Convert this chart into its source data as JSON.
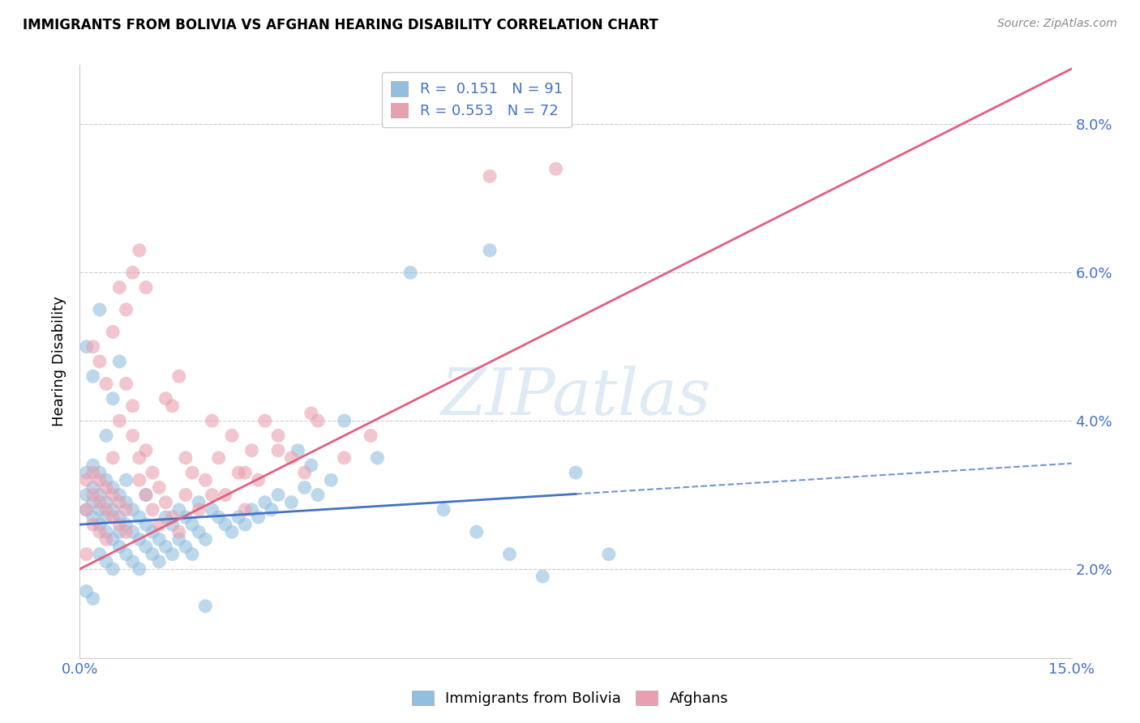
{
  "title": "IMMIGRANTS FROM BOLIVIA VS AFGHAN HEARING DISABILITY CORRELATION CHART",
  "source": "Source: ZipAtlas.com",
  "ylabel": "Hearing Disability",
  "xlim": [
    0.0,
    0.15
  ],
  "ylim": [
    0.008,
    0.088
  ],
  "yticks": [
    0.02,
    0.04,
    0.06,
    0.08
  ],
  "ytick_labels": [
    "2.0%",
    "4.0%",
    "6.0%",
    "8.0%"
  ],
  "xticks": [
    0.0,
    0.03,
    0.06,
    0.09,
    0.12,
    0.15
  ],
  "xtick_labels": [
    "0.0%",
    "",
    "",
    "",
    "",
    "15.0%"
  ],
  "bolivia_R": 0.151,
  "bolivia_N": 91,
  "afghan_R": 0.553,
  "afghan_N": 72,
  "bolivia_color": "#92BFDF",
  "afghan_color": "#E8A0B0",
  "bolivia_line_color": "#4472C4",
  "afghan_line_color": "#E06080",
  "bolivia_line_solid_end": 0.075,
  "bolivia_x": [
    0.001,
    0.001,
    0.001,
    0.002,
    0.002,
    0.002,
    0.002,
    0.003,
    0.003,
    0.003,
    0.003,
    0.003,
    0.004,
    0.004,
    0.004,
    0.004,
    0.004,
    0.005,
    0.005,
    0.005,
    0.005,
    0.006,
    0.006,
    0.006,
    0.006,
    0.007,
    0.007,
    0.007,
    0.007,
    0.008,
    0.008,
    0.008,
    0.009,
    0.009,
    0.009,
    0.01,
    0.01,
    0.01,
    0.011,
    0.011,
    0.012,
    0.012,
    0.013,
    0.013,
    0.014,
    0.014,
    0.015,
    0.015,
    0.016,
    0.016,
    0.017,
    0.017,
    0.018,
    0.018,
    0.019,
    0.02,
    0.021,
    0.022,
    0.023,
    0.024,
    0.025,
    0.026,
    0.027,
    0.028,
    0.029,
    0.03,
    0.032,
    0.034,
    0.036,
    0.038,
    0.04,
    0.045,
    0.05,
    0.055,
    0.06,
    0.065,
    0.07,
    0.001,
    0.002,
    0.003,
    0.004,
    0.005,
    0.006,
    0.001,
    0.002,
    0.075,
    0.08,
    0.033,
    0.019,
    0.062,
    0.035
  ],
  "bolivia_y": [
    0.03,
    0.028,
    0.033,
    0.027,
    0.031,
    0.034,
    0.029,
    0.026,
    0.03,
    0.033,
    0.022,
    0.028,
    0.025,
    0.029,
    0.032,
    0.021,
    0.027,
    0.024,
    0.028,
    0.031,
    0.02,
    0.023,
    0.027,
    0.03,
    0.025,
    0.022,
    0.026,
    0.029,
    0.032,
    0.021,
    0.025,
    0.028,
    0.02,
    0.024,
    0.027,
    0.023,
    0.026,
    0.03,
    0.022,
    0.025,
    0.021,
    0.024,
    0.023,
    0.027,
    0.022,
    0.026,
    0.024,
    0.028,
    0.023,
    0.027,
    0.022,
    0.026,
    0.025,
    0.029,
    0.024,
    0.028,
    0.027,
    0.026,
    0.025,
    0.027,
    0.026,
    0.028,
    0.027,
    0.029,
    0.028,
    0.03,
    0.029,
    0.031,
    0.03,
    0.032,
    0.04,
    0.035,
    0.06,
    0.028,
    0.025,
    0.022,
    0.019,
    0.05,
    0.046,
    0.055,
    0.038,
    0.043,
    0.048,
    0.017,
    0.016,
    0.033,
    0.022,
    0.036,
    0.015,
    0.063,
    0.034
  ],
  "afghan_x": [
    0.001,
    0.001,
    0.002,
    0.002,
    0.002,
    0.003,
    0.003,
    0.003,
    0.004,
    0.004,
    0.004,
    0.005,
    0.005,
    0.005,
    0.006,
    0.006,
    0.006,
    0.007,
    0.007,
    0.007,
    0.008,
    0.008,
    0.009,
    0.009,
    0.01,
    0.01,
    0.011,
    0.011,
    0.012,
    0.012,
    0.013,
    0.013,
    0.014,
    0.014,
    0.015,
    0.015,
    0.016,
    0.016,
    0.017,
    0.018,
    0.019,
    0.02,
    0.021,
    0.022,
    0.023,
    0.024,
    0.025,
    0.026,
    0.027,
    0.028,
    0.03,
    0.032,
    0.034,
    0.036,
    0.04,
    0.044,
    0.002,
    0.003,
    0.004,
    0.005,
    0.006,
    0.007,
    0.008,
    0.009,
    0.01,
    0.001,
    0.062,
    0.072,
    0.02,
    0.025,
    0.03,
    0.035
  ],
  "afghan_y": [
    0.032,
    0.028,
    0.03,
    0.033,
    0.026,
    0.029,
    0.032,
    0.025,
    0.028,
    0.031,
    0.024,
    0.027,
    0.03,
    0.035,
    0.026,
    0.029,
    0.04,
    0.025,
    0.028,
    0.045,
    0.038,
    0.042,
    0.035,
    0.032,
    0.036,
    0.03,
    0.033,
    0.028,
    0.031,
    0.026,
    0.043,
    0.029,
    0.042,
    0.027,
    0.046,
    0.025,
    0.035,
    0.03,
    0.033,
    0.028,
    0.032,
    0.04,
    0.035,
    0.03,
    0.038,
    0.033,
    0.028,
    0.036,
    0.032,
    0.04,
    0.038,
    0.035,
    0.033,
    0.04,
    0.035,
    0.038,
    0.05,
    0.048,
    0.045,
    0.052,
    0.058,
    0.055,
    0.06,
    0.063,
    0.058,
    0.022,
    0.073,
    0.074,
    0.03,
    0.033,
    0.036,
    0.041
  ]
}
